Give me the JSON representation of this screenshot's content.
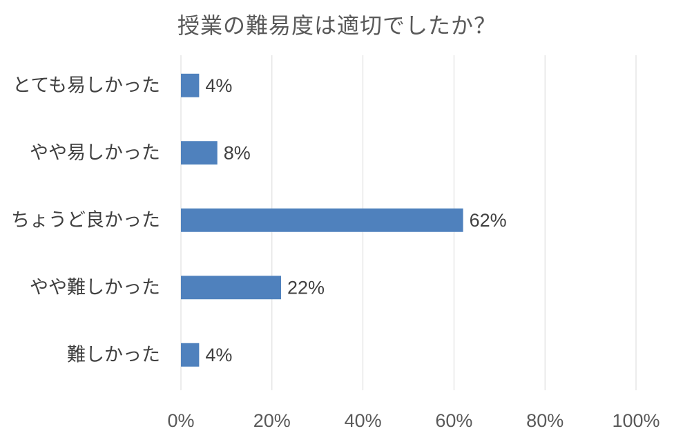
{
  "chart_data": {
    "type": "bar",
    "orientation": "horizontal",
    "title": "授業の難易度は適切でしたか？",
    "categories": [
      "とても易しかった",
      "やや易しかった",
      "ちょうど良かった",
      "やや難しかった",
      "難しかった"
    ],
    "values": [
      4,
      8,
      62,
      22,
      4
    ],
    "data_labels": [
      "4%",
      "8%",
      "62%",
      "22%",
      "4%"
    ],
    "xlim": [
      0,
      100
    ],
    "x_ticks": [
      0,
      20,
      40,
      60,
      80,
      100
    ],
    "x_tick_labels": [
      "0%",
      "20%",
      "40%",
      "60%",
      "80%",
      "100%"
    ],
    "xlabel": "",
    "ylabel": "",
    "grid": "vertical",
    "legend": "none",
    "bar_color": "#4f81bd",
    "gridline_color": "#d9d9d9",
    "label_color": "#404040",
    "axis_text_color": "#595959"
  }
}
